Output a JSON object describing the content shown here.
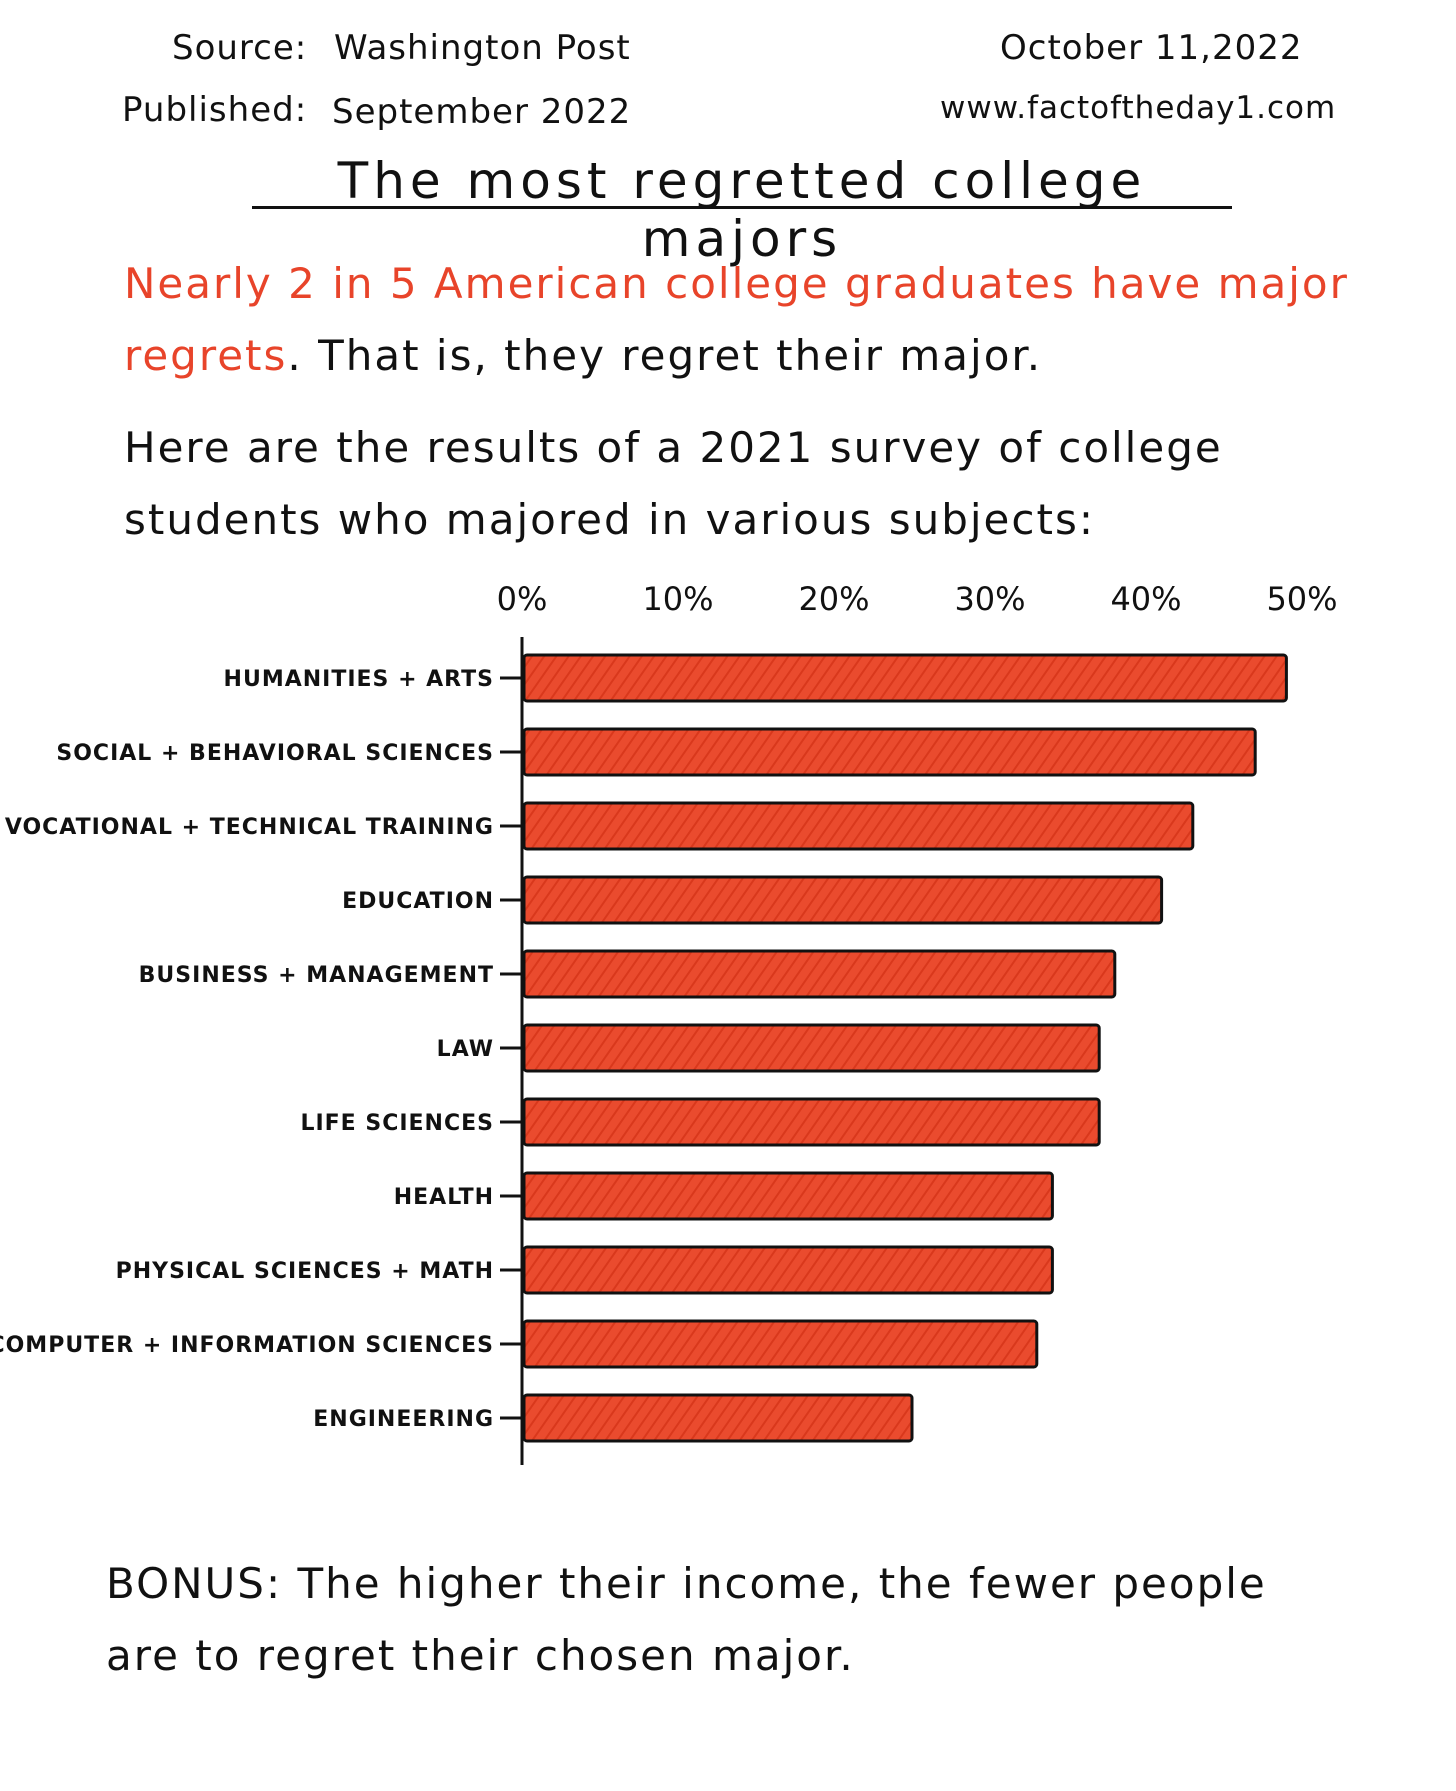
{
  "header": {
    "source_label": "Source:",
    "source_value": "Washington Post",
    "published_label": "Published:",
    "published_value": "September 2022",
    "date": "October 11,2022",
    "website": "www.factoftheday1.com"
  },
  "title": "The most regretted college majors",
  "intro": {
    "highlight": "Nearly 2 in 5 American college graduates have major regrets",
    "rest": ". That is, they regret their major."
  },
  "lead": "Here are the results of a 2021 survey of college students who majored in various subjects:",
  "bonus": "BONUS: The higher their income, the fewer people are to regret their chosen major.",
  "colors": {
    "accent": "#e8442a",
    "ink": "#111111"
  },
  "chart_data": {
    "type": "bar",
    "orientation": "horizontal",
    "categories": [
      "HUMANITIES + ARTS",
      "SOCIAL + BEHAVIORAL SCIENCES",
      "VOCATIONAL + TECHNICAL TRAINING",
      "EDUCATION",
      "BUSINESS + MANAGEMENT",
      "LAW",
      "LIFE SCIENCES",
      "HEALTH",
      "PHYSICAL SCIENCES + MATH",
      "COMPUTER + INFORMATION SCIENCES",
      "ENGINEERING"
    ],
    "values": [
      49,
      47,
      43,
      41,
      38,
      37,
      37,
      34,
      34,
      33,
      25
    ],
    "xticks": [
      "0%",
      "10%",
      "20%",
      "30%",
      "40%",
      "50%"
    ],
    "xlim": [
      0,
      50
    ],
    "grid": false,
    "bar_color": "#e8442a"
  }
}
